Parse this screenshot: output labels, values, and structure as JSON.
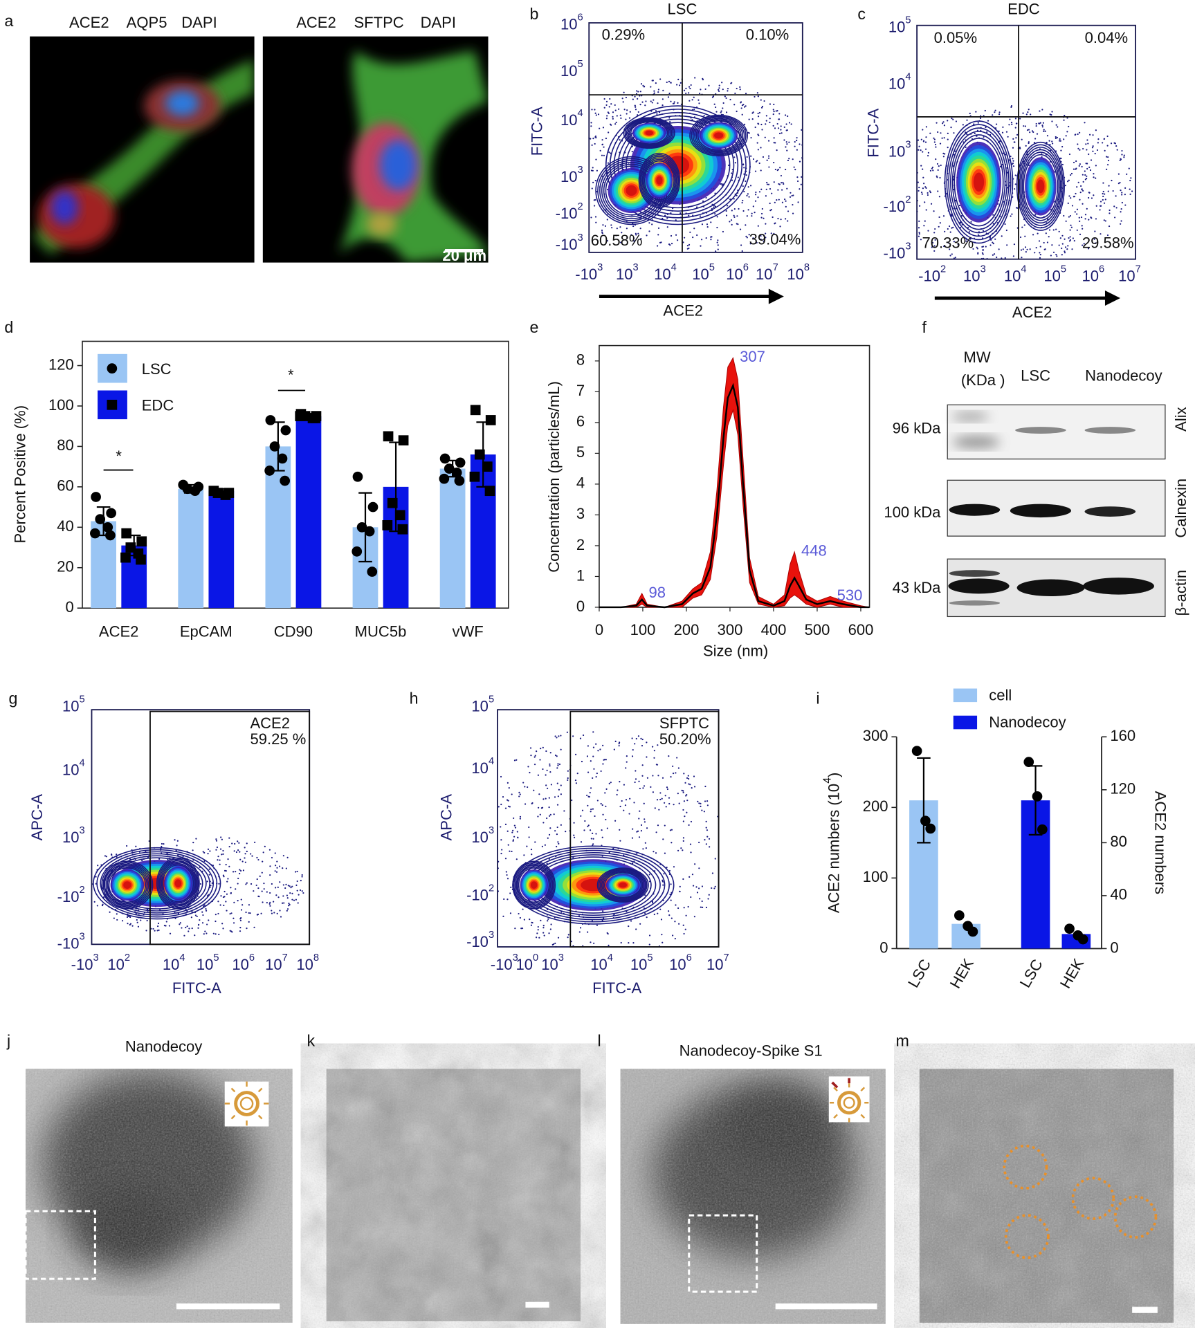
{
  "figure": {
    "panel_labels": [
      "a",
      "b",
      "c",
      "d",
      "e",
      "f",
      "g",
      "h",
      "i",
      "j",
      "k",
      "l",
      "m"
    ],
    "a": {
      "left": [
        "ACE2",
        "AQP5",
        "DAPI"
      ],
      "right": [
        "ACE2",
        "SFTPC",
        "DAPI"
      ],
      "scale_bar": "20 μm"
    },
    "b": {
      "title": "LSC",
      "x_label": "ACE2",
      "y_label": "FITC-A",
      "quadrants": [
        "0.29%",
        "0.10%",
        "60.58%",
        "39.04%"
      ],
      "xticks": [
        [
          "-10",
          "3"
        ],
        [
          "10",
          "3"
        ],
        [
          "10",
          "4"
        ],
        [
          "10",
          "5"
        ],
        [
          "10",
          "6"
        ],
        [
          "10",
          "7"
        ],
        [
          "10",
          "8"
        ]
      ],
      "yticks": [
        [
          "10",
          "6"
        ],
        [
          "10",
          "5"
        ],
        [
          "10",
          "4"
        ],
        [
          "10",
          "3"
        ],
        [
          "-10",
          "2"
        ],
        [
          "-10",
          "3"
        ]
      ]
    },
    "c": {
      "title": "EDC",
      "x_label": "ACE2",
      "y_label": "FITC-A",
      "quadrants": [
        "0.05%",
        "0.04%",
        "70.33%",
        "29.58%"
      ],
      "xticks": [
        [
          "-10",
          "2"
        ],
        [
          "10",
          "3"
        ],
        [
          "10",
          "4"
        ],
        [
          "10",
          "5"
        ],
        [
          "10",
          "6"
        ],
        [
          "10",
          "7"
        ]
      ],
      "yticks": [
        [
          "10",
          "5"
        ],
        [
          "10",
          "4"
        ],
        [
          "10",
          "3"
        ],
        [
          "-10",
          "2"
        ],
        [
          "-10",
          "3"
        ]
      ]
    },
    "f": {
      "header": [
        "MW",
        "(KDa )",
        "LSC",
        "Nanodecoy"
      ],
      "sizes": [
        "96 kDa",
        "100 kDa",
        "43 kDa"
      ],
      "proteins": [
        "Alix",
        "Calnexin",
        "β-actin"
      ]
    },
    "g": {
      "x_label": "FITC-A",
      "y_label": "APC-A",
      "gate": [
        "ACE2",
        "59.25 %"
      ],
      "xticks": [
        [
          "-10",
          "3"
        ],
        [
          "10",
          "2"
        ],
        [
          "10",
          "4"
        ],
        [
          "10",
          "5"
        ],
        [
          "10",
          "6"
        ],
        [
          "10",
          "7"
        ],
        [
          "10",
          "8"
        ]
      ],
      "yticks": [
        [
          "10",
          "5"
        ],
        [
          "10",
          "4"
        ],
        [
          "10",
          "3"
        ],
        [
          "-10",
          "2"
        ],
        [
          "-10",
          "3"
        ]
      ]
    },
    "h": {
      "x_label": "FITC-A",
      "y_label": "APC-A",
      "gate": [
        "SFPTC",
        "50.20%"
      ],
      "xticks": [
        [
          "-10",
          "3"
        ],
        [
          "10",
          "0"
        ],
        [
          "10",
          "3"
        ],
        [
          "10",
          "4"
        ],
        [
          "10",
          "5"
        ],
        [
          "10",
          "6"
        ],
        [
          "10",
          "7"
        ]
      ],
      "yticks": [
        [
          "10",
          "5"
        ],
        [
          "10",
          "4"
        ],
        [
          "10",
          "3"
        ],
        [
          "-10",
          "2"
        ],
        [
          "-10",
          "3"
        ]
      ]
    },
    "j": {
      "title": "Nanodecoy"
    },
    "l": {
      "title": "Nanodecoy-Spike S1"
    }
  },
  "chart_data": [
    {
      "type": "bar",
      "y_label": "Percent Positive (%)",
      "categories": [
        "ACE2",
        "EpCAM",
        "CD90",
        "MUC5b",
        "vWF"
      ],
      "ylim": [
        0,
        132
      ],
      "yticks": [
        0,
        20,
        40,
        60,
        80,
        100,
        120
      ],
      "legend": "top-left",
      "annotations": [
        "*",
        "*"
      ],
      "series": [
        {
          "name": "LSC",
          "color": "#9ac5f4",
          "marker": "circle",
          "values": [
            43,
            59,
            80,
            40,
            69
          ],
          "errors": [
            7,
            2,
            12,
            17,
            4
          ],
          "points": [
            [
              55,
              47,
              44,
              40,
              37,
              36
            ],
            [
              61,
              60,
              59,
              58
            ],
            [
              93,
              88,
              80,
              74,
              68,
              63
            ],
            [
              65,
              50,
              40,
              38,
              28,
              18
            ],
            [
              74,
              72,
              69,
              67,
              64,
              63
            ]
          ]
        },
        {
          "name": "EDC",
          "color": "#0a16e6",
          "marker": "square",
          "values": [
            31,
            58,
            95,
            60,
            76
          ],
          "errors": [
            5,
            1,
            1,
            22,
            16
          ],
          "points": [
            [
              37,
              33,
              30,
              27,
              25,
              24
            ],
            [
              58,
              57,
              57,
              56
            ],
            [
              96,
              95,
              95,
              94,
              95,
              94
            ],
            [
              85,
              83,
              52,
              46,
              41,
              39
            ],
            [
              98,
              93,
              76,
              70,
              65,
              58
            ]
          ]
        }
      ]
    },
    {
      "type": "line",
      "x_label": "Size (nm)",
      "y_label": "Concentration (particles/mL)",
      "xlim": [
        0,
        620
      ],
      "xticks": [
        0,
        100,
        200,
        300,
        400,
        500,
        600
      ],
      "ylim": [
        0,
        8.5
      ],
      "yticks": [
        0,
        1,
        2,
        3,
        4,
        5,
        6,
        7,
        8
      ],
      "x": [
        0,
        50,
        85,
        98,
        110,
        150,
        190,
        215,
        235,
        255,
        270,
        285,
        295,
        307,
        318,
        330,
        345,
        365,
        400,
        425,
        438,
        448,
        458,
        475,
        500,
        530,
        560,
        600,
        620
      ],
      "series": [
        {
          "color": "#000000",
          "values": [
            0,
            0,
            0.05,
            0.25,
            0.05,
            0,
            0.1,
            0.45,
            0.6,
            1.3,
            3.0,
            5.5,
            6.8,
            7.2,
            6.5,
            4.0,
            1.2,
            0.2,
            0.05,
            0.2,
            0.7,
            0.95,
            0.7,
            0.25,
            0.1,
            0.2,
            0.1,
            0,
            0
          ]
        }
      ],
      "band": {
        "color": "#e8120c",
        "upper": [
          0,
          0,
          0.1,
          0.45,
          0.1,
          0,
          0.2,
          0.6,
          0.8,
          1.8,
          3.8,
          6.5,
          7.8,
          8.1,
          7.4,
          4.8,
          1.6,
          0.35,
          0.1,
          0.4,
          1.4,
          1.8,
          1.2,
          0.4,
          0.2,
          0.35,
          0.2,
          0.05,
          0
        ],
        "lower": [
          0,
          0,
          0,
          0.1,
          0,
          0,
          0,
          0.3,
          0.4,
          0.9,
          2.3,
          4.6,
          5.9,
          6.4,
          5.6,
          3.3,
          0.8,
          0.1,
          0,
          0.05,
          0.3,
          0.4,
          0.3,
          0.1,
          0,
          0.1,
          0,
          0,
          0
        ]
      },
      "peaks": [
        98,
        307,
        448,
        530
      ]
    },
    {
      "type": "bar",
      "y_label": [
        "ACE2 numbers (10",
        "4",
        ")"
      ],
      "y2_label": "ACE2 numbers",
      "categories": [
        "LSC",
        "HEK",
        "LSC",
        "HEK"
      ],
      "ylim": [
        0,
        300
      ],
      "yticks": [
        0,
        100,
        200,
        300
      ],
      "y2lim": [
        0,
        160
      ],
      "y2ticks": [
        0,
        40,
        80,
        120,
        160
      ],
      "series": [
        {
          "name": "cell",
          "color": "#9ac5f4",
          "marker": "circle",
          "values": [
            210,
            35,
            null,
            null
          ],
          "errors": [
            60,
            null,
            null,
            null
          ],
          "points": [
            [
              280,
              181,
              170
            ],
            [
              47,
              32,
              24
            ],
            null,
            null
          ]
        },
        {
          "name": "Nanodecoy",
          "color": "#0a16e6",
          "marker": "circle",
          "axis": "y2",
          "values": [
            null,
            null,
            112,
            11
          ],
          "errors": [
            null,
            null,
            26,
            null
          ],
          "points": [
            null,
            null,
            [
              141,
              115,
              90
            ],
            [
              15,
              10,
              7
            ]
          ]
        }
      ]
    }
  ]
}
